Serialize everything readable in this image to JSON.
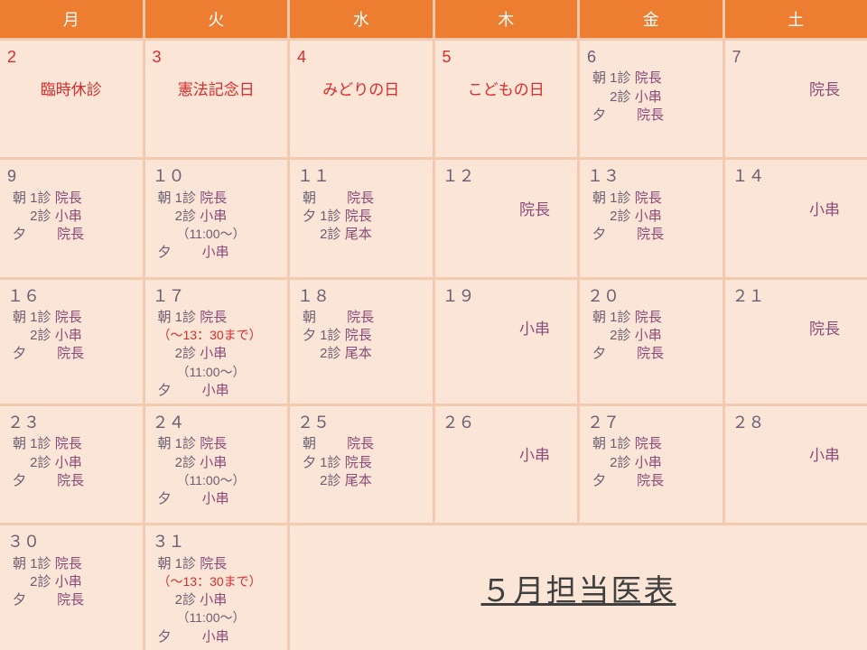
{
  "colors": {
    "header_bg": "#ed7d31",
    "header_fg": "#ffffff",
    "cell_bg": "#fbe5d6",
    "gap_bg": "#f3c9b0",
    "text": "#6b5d73",
    "doctor": "#8a4a7a",
    "holiday": "#d92c2c",
    "title": "#404040"
  },
  "title": "５月担当医表",
  "headers": [
    "月",
    "火",
    "水",
    "木",
    "金",
    "土"
  ],
  "weeks": [
    [
      {
        "day": "2",
        "holiday": true,
        "holiday_name": "臨時休診"
      },
      {
        "day": "3",
        "holiday": true,
        "holiday_name": "憲法記念日"
      },
      {
        "day": "4",
        "holiday": true,
        "holiday_name": "みどりの日"
      },
      {
        "day": "5",
        "holiday": true,
        "holiday_name": "こどもの日"
      },
      {
        "day": "6",
        "lines": [
          {
            "t": "朝 1診",
            "d": "院長"
          },
          {
            "t": "　 2診",
            "d": "小串"
          },
          {
            "t": "夕　　",
            "d": "院長"
          }
        ]
      },
      {
        "day": "7",
        "simple": "院長"
      }
    ],
    [
      {
        "day": "9",
        "lines": [
          {
            "t": "朝 1診",
            "d": "院長"
          },
          {
            "t": "　 2診",
            "d": "小串"
          },
          {
            "t": "夕　　",
            "d": "院長"
          }
        ]
      },
      {
        "day": "１０",
        "lines": [
          {
            "t": "朝 1診",
            "d": "院長"
          },
          {
            "t": "　 2診",
            "d": "小串"
          },
          {
            "t": "　　（11:00～）",
            "note_style": true
          },
          {
            "t": "夕　　",
            "d": "小串"
          }
        ]
      },
      {
        "day": "１１",
        "lines": [
          {
            "t": "朝　　",
            "d": "院長"
          },
          {
            "t": "夕 1診",
            "d": "院長"
          },
          {
            "t": "　 2診",
            "d": "尾本"
          }
        ]
      },
      {
        "day": "１２",
        "simple": "院長"
      },
      {
        "day": "１３",
        "lines": [
          {
            "t": "朝 1診",
            "d": "院長"
          },
          {
            "t": "　 2診",
            "d": "小串"
          },
          {
            "t": "夕　　",
            "d": "院長"
          }
        ]
      },
      {
        "day": "１４",
        "simple": "小串"
      }
    ],
    [
      {
        "day": "１６",
        "lines": [
          {
            "t": "朝 1診",
            "d": "院長"
          },
          {
            "t": "　 2診",
            "d": "小串"
          },
          {
            "t": "夕　　",
            "d": "院長"
          }
        ]
      },
      {
        "day": "１７",
        "lines": [
          {
            "t": "朝 1診",
            "d": "院長"
          },
          {
            "t": "（～13：30まで）",
            "red": true
          },
          {
            "t": "　 2診",
            "d": "小串"
          },
          {
            "t": "　　（11:00～）",
            "note_style": true
          },
          {
            "t": "夕　　",
            "d": "小串"
          }
        ]
      },
      {
        "day": "１８",
        "lines": [
          {
            "t": "朝　　",
            "d": "院長"
          },
          {
            "t": "夕 1診",
            "d": "院長"
          },
          {
            "t": "　 2診",
            "d": "尾本"
          }
        ]
      },
      {
        "day": "１９",
        "simple": "小串"
      },
      {
        "day": "２０",
        "lines": [
          {
            "t": "朝 1診",
            "d": "院長"
          },
          {
            "t": "　 2診",
            "d": "小串"
          },
          {
            "t": "夕　　",
            "d": "院長"
          }
        ]
      },
      {
        "day": "２１",
        "simple": "院長"
      }
    ],
    [
      {
        "day": "２３",
        "lines": [
          {
            "t": "朝 1診",
            "d": "院長"
          },
          {
            "t": "　 2診",
            "d": "小串"
          },
          {
            "t": "夕　　",
            "d": "院長"
          }
        ]
      },
      {
        "day": "２４",
        "lines": [
          {
            "t": "朝 1診",
            "d": "院長"
          },
          {
            "t": "　 2診",
            "d": "小串"
          },
          {
            "t": "　　（11:00～）",
            "note_style": true
          },
          {
            "t": "夕　　",
            "d": "小串"
          }
        ]
      },
      {
        "day": "２５",
        "lines": [
          {
            "t": "朝　　",
            "d": "院長"
          },
          {
            "t": "夕 1診",
            "d": "院長"
          },
          {
            "t": "　 2診",
            "d": "尾本"
          }
        ]
      },
      {
        "day": "２６",
        "simple": "小串"
      },
      {
        "day": "２７",
        "lines": [
          {
            "t": "朝 1診",
            "d": "院長"
          },
          {
            "t": "　 2診",
            "d": "小串"
          },
          {
            "t": "夕　　",
            "d": "院長"
          }
        ]
      },
      {
        "day": "２８",
        "simple": "小串"
      }
    ],
    [
      {
        "day": "３０",
        "lines": [
          {
            "t": "朝 1診",
            "d": "院長"
          },
          {
            "t": "　 2診",
            "d": "小串"
          },
          {
            "t": "夕　　",
            "d": "院長"
          }
        ]
      },
      {
        "day": "３１",
        "lines": [
          {
            "t": "朝 1診",
            "d": "院長"
          },
          {
            "t": "（～13：30まで）",
            "red": true
          },
          {
            "t": "　 2診",
            "d": "小串"
          },
          {
            "t": "　　（11:00～）",
            "note_style": true
          },
          {
            "t": "夕　　",
            "d": "小串"
          }
        ]
      }
    ]
  ]
}
